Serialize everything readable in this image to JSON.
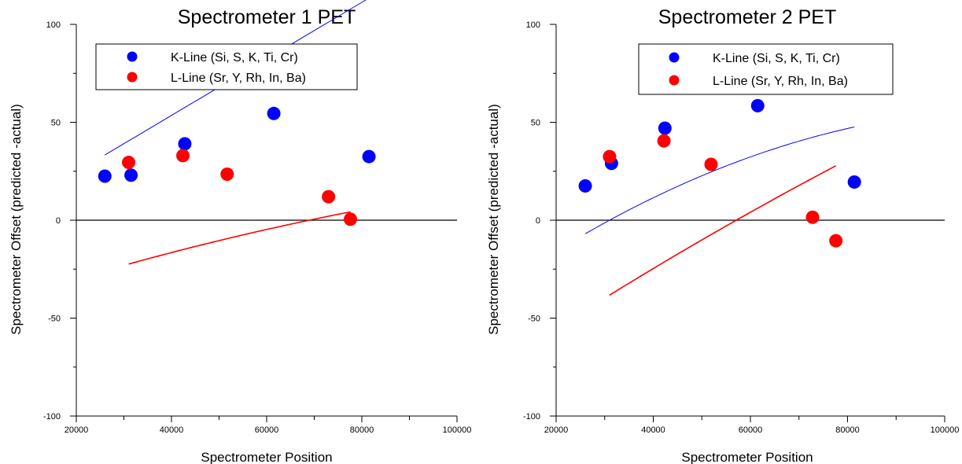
{
  "chart_data": [
    {
      "type": "scatter",
      "title": "Spectrometer 1 PET",
      "xlabel": "Spectrometer Position",
      "ylabel": "Spectrometer Offset (predicted -actual)",
      "xlim": [
        20000,
        100000
      ],
      "ylim": [
        -100,
        100
      ],
      "x_ticks": [
        "20000",
        "40000",
        "60000",
        "80000",
        "100000"
      ],
      "y_ticks": [
        "-100",
        "-50",
        "0",
        "50",
        "100"
      ],
      "legend_position": "top-left",
      "series": [
        {
          "name": "K-Line (Si, S, K, Ti, Cr)",
          "color": "#0000ff",
          "points": [
            [
              26000,
              22.5
            ],
            [
              31500,
              23
            ],
            [
              42800,
              39
            ],
            [
              61500,
              54.5
            ],
            [
              81500,
              32.5
            ]
          ],
          "fit": [
            -0.001225,
            144.43,
            -4.2622
          ]
        },
        {
          "name": "L-Line (Sr, Y, Rh, In, Ba)",
          "color": "#ff0000",
          "points": [
            [
              31000,
              29.5
            ],
            [
              42400,
              33
            ],
            [
              51700,
              23.5
            ],
            [
              73000,
              12
            ],
            [
              77600,
              0.5
            ]
          ],
          "fit": [
            -21.1,
            80.07,
            -45.18
          ]
        }
      ]
    },
    {
      "type": "scatter",
      "title": "Spectrometer 2 PET",
      "xlabel": "Spectrometer Position",
      "ylabel": "Spectrometer Offset (predicted -actual)",
      "xlim": [
        20000,
        100000
      ],
      "ylim": [
        -100,
        100
      ],
      "x_ticks": [
        "20000",
        "40000",
        "60000",
        "80000",
        "100000"
      ],
      "y_ticks": [
        "-100",
        "-50",
        "0",
        "50",
        "100"
      ],
      "legend_position": "top-right",
      "series": [
        {
          "name": "K-Line (Si, S, K, Ti, Cr)",
          "color": "#0000ff",
          "points": [
            [
              26000,
              17.5
            ],
            [
              31400,
              29
            ],
            [
              42400,
              47
            ],
            [
              61500,
              58.5
            ],
            [
              81400,
              19.5
            ]
          ],
          "fit": [
            -79.3,
            183.6,
            -49.3
          ]
        },
        {
          "name": "L-Line (Sr, Y, Rh, In, Ba)",
          "color": "#ff0000",
          "points": [
            [
              31000,
              32.5
            ],
            [
              42200,
              40.5
            ],
            [
              51900,
              28.5
            ],
            [
              72800,
              1.5
            ],
            [
              77600,
              -10.5
            ]
          ],
          "fit": [
            -24.1,
            167.9,
            -88.0
          ]
        }
      ]
    }
  ]
}
